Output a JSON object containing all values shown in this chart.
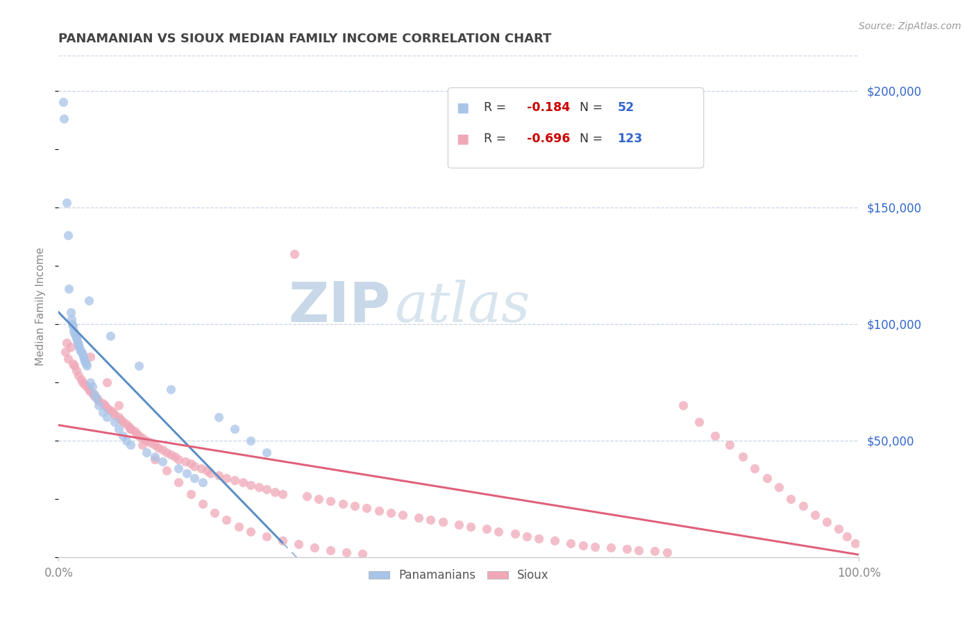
{
  "title": "PANAMANIAN VS SIOUX MEDIAN FAMILY INCOME CORRELATION CHART",
  "source": "Source: ZipAtlas.com",
  "ylabel": "Median Family Income",
  "xlim": [
    0,
    1.0
  ],
  "ylim": [
    0,
    215000
  ],
  "legend_blue_label": "Panamanians",
  "legend_pink_label": "Sioux",
  "blue_color": "#a8c4e8",
  "pink_color": "#f0a8b8",
  "blue_line_color": "#5b8ec4",
  "pink_line_color": "#e0607a",
  "blue_dashed_color": "#9ab8d8",
  "grid_color": "#c8d4e4",
  "watermark_ZIP": "ZIP",
  "watermark_atlas": "atlas",
  "watermark_color_ZIP": "#c8d8e8",
  "watermark_color_atlas": "#d8e4ee",
  "title_color": "#444444",
  "source_color": "#999999",
  "axis_color": "#888888",
  "tick_color": "#888888",
  "right_tick_color": "#3366cc",
  "legend_R_color": "#cc0000",
  "legend_N_color": "#3366cc",
  "blue_x": [
    0.006,
    0.007,
    0.01,
    0.012,
    0.013,
    0.015,
    0.016,
    0.017,
    0.018,
    0.019,
    0.02,
    0.021,
    0.022,
    0.023,
    0.024,
    0.025,
    0.026,
    0.027,
    0.028,
    0.03,
    0.031,
    0.032,
    0.033,
    0.034,
    0.035,
    0.038,
    0.04,
    0.042,
    0.045,
    0.047,
    0.05,
    0.055,
    0.06,
    0.065,
    0.07,
    0.075,
    0.08,
    0.085,
    0.09,
    0.1,
    0.11,
    0.12,
    0.13,
    0.14,
    0.15,
    0.16,
    0.17,
    0.18,
    0.2,
    0.22,
    0.24,
    0.26
  ],
  "blue_y": [
    195000,
    188000,
    152000,
    138000,
    115000,
    105000,
    102000,
    100000,
    99000,
    97000,
    96000,
    95000,
    94000,
    93000,
    92000,
    91000,
    90000,
    89000,
    88000,
    87000,
    86000,
    85000,
    84000,
    83000,
    82000,
    110000,
    75000,
    73000,
    70000,
    68000,
    65000,
    62000,
    60000,
    95000,
    58000,
    55000,
    52000,
    50000,
    48000,
    82000,
    45000,
    43000,
    41000,
    72000,
    38000,
    36000,
    34000,
    32000,
    60000,
    55000,
    50000,
    45000
  ],
  "pink_x": [
    0.008,
    0.01,
    0.012,
    0.015,
    0.018,
    0.02,
    0.022,
    0.025,
    0.028,
    0.03,
    0.033,
    0.035,
    0.038,
    0.04,
    0.043,
    0.045,
    0.048,
    0.05,
    0.055,
    0.058,
    0.06,
    0.065,
    0.068,
    0.07,
    0.075,
    0.078,
    0.08,
    0.085,
    0.088,
    0.09,
    0.095,
    0.098,
    0.1,
    0.105,
    0.11,
    0.115,
    0.12,
    0.125,
    0.13,
    0.135,
    0.14,
    0.145,
    0.15,
    0.158,
    0.165,
    0.17,
    0.178,
    0.185,
    0.19,
    0.2,
    0.21,
    0.22,
    0.23,
    0.24,
    0.25,
    0.26,
    0.27,
    0.28,
    0.295,
    0.31,
    0.325,
    0.34,
    0.355,
    0.37,
    0.385,
    0.4,
    0.415,
    0.43,
    0.45,
    0.465,
    0.48,
    0.5,
    0.515,
    0.535,
    0.55,
    0.57,
    0.585,
    0.6,
    0.62,
    0.64,
    0.655,
    0.67,
    0.69,
    0.71,
    0.725,
    0.745,
    0.76,
    0.78,
    0.8,
    0.82,
    0.838,
    0.855,
    0.87,
    0.885,
    0.9,
    0.915,
    0.93,
    0.945,
    0.96,
    0.975,
    0.985,
    0.995,
    0.04,
    0.06,
    0.075,
    0.09,
    0.105,
    0.12,
    0.135,
    0.15,
    0.165,
    0.18,
    0.195,
    0.21,
    0.225,
    0.24,
    0.26,
    0.28,
    0.3,
    0.32,
    0.34,
    0.36,
    0.38
  ],
  "pink_y": [
    88000,
    92000,
    85000,
    90000,
    83000,
    82000,
    80000,
    78000,
    76000,
    75000,
    74000,
    73000,
    72000,
    71000,
    70000,
    69000,
    68000,
    67000,
    66000,
    65000,
    64000,
    63000,
    62000,
    61000,
    60000,
    59000,
    58000,
    57000,
    56000,
    55000,
    54000,
    53000,
    52000,
    51000,
    50000,
    49000,
    48000,
    47000,
    46000,
    45000,
    44000,
    43000,
    42000,
    41000,
    40000,
    39000,
    38000,
    37000,
    36000,
    35000,
    34000,
    33000,
    32000,
    31000,
    30000,
    29000,
    28000,
    27000,
    130000,
    26000,
    25000,
    24000,
    23000,
    22000,
    21000,
    20000,
    19000,
    18000,
    17000,
    16000,
    15000,
    14000,
    13000,
    12000,
    11000,
    10000,
    9000,
    8000,
    7000,
    6000,
    5000,
    4500,
    4000,
    3500,
    3000,
    2500,
    2000,
    65000,
    58000,
    52000,
    48000,
    43000,
    38000,
    34000,
    30000,
    25000,
    22000,
    18000,
    15000,
    12000,
    9000,
    6000,
    86000,
    75000,
    65000,
    55000,
    48000,
    42000,
    37000,
    32000,
    27000,
    23000,
    19000,
    16000,
    13000,
    11000,
    9000,
    7000,
    5500,
    4000,
    3000,
    2000,
    1500
  ]
}
